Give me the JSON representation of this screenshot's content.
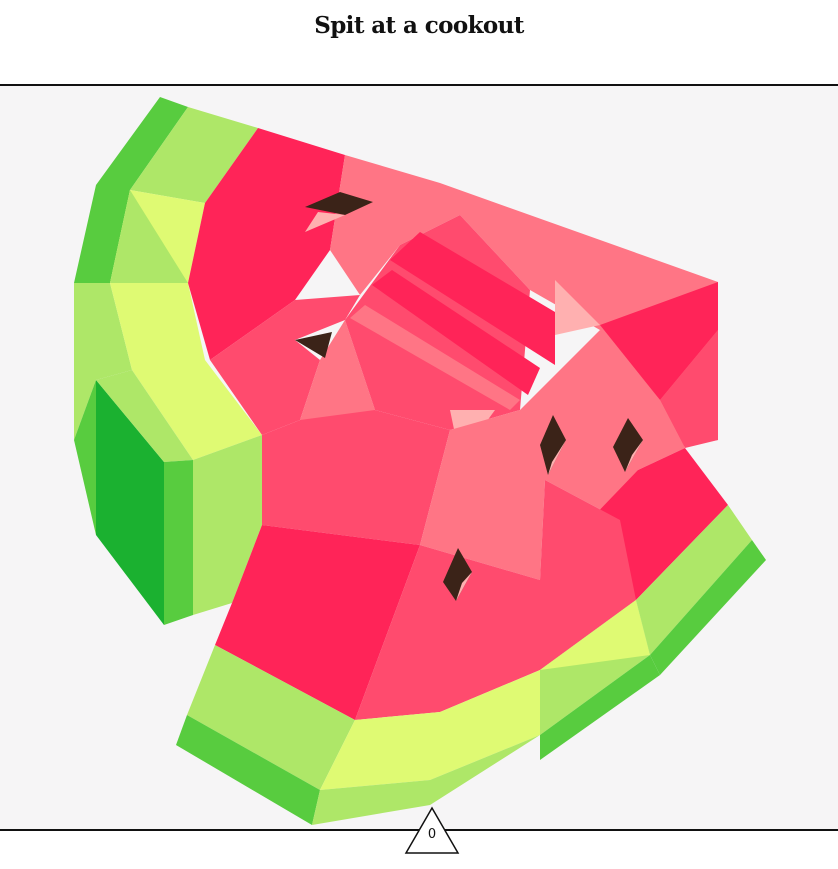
{
  "prompt": {
    "title": "Spit at a cookout"
  },
  "artwork": {
    "icon": "watermelon-slice-icon",
    "palette": {
      "rind_dark": "#1bb130",
      "rind_mid": "#58cc3f",
      "rind_light": "#aee768",
      "rind_pale": "#dffa73",
      "flesh_deep": "#ff2458",
      "flesh_mid": "#ff4b6e",
      "flesh_light": "#ff7585",
      "flesh_pale": "#ffb0b0",
      "seed": "#3b2318",
      "background": "#f6f5f6"
    }
  },
  "counter": {
    "value": "0",
    "icon": "triangle-icon"
  }
}
